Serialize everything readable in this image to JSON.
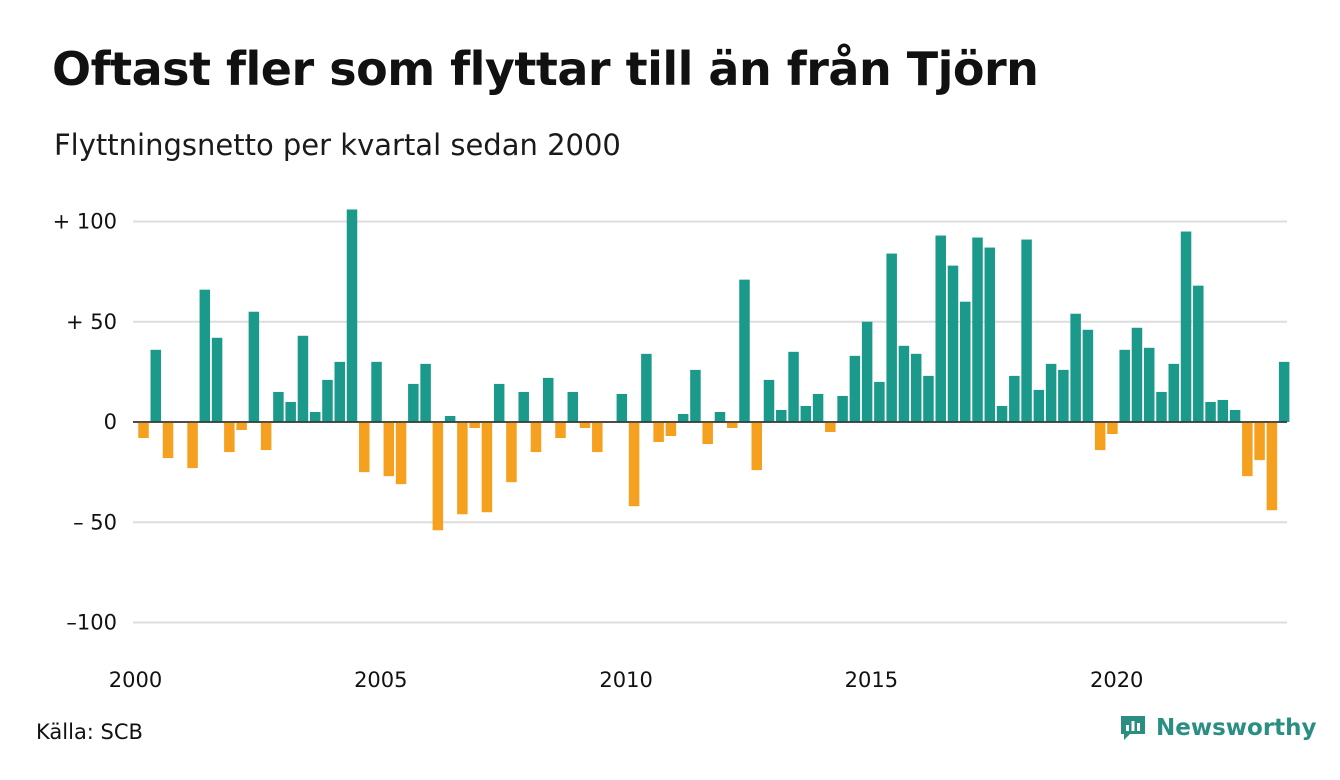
{
  "header": {
    "title": "Oftast fler som flyttar till än från Tjörn",
    "subtitle": "Flyttningsnetto per kvartal sedan 2000"
  },
  "footer": {
    "source": "Källa: SCB",
    "brand": "Newsworthy",
    "brand_icon": "newsworthy-logo-icon"
  },
  "colors": {
    "positive": "#1b9a8c",
    "negative": "#f6a01f",
    "grid": "#dddddd",
    "baseline": "#333333",
    "brand": "#2a8f82"
  },
  "chart_data": {
    "type": "bar",
    "x_start": "2000-Q1",
    "x_tick_labels": [
      "2000",
      "2005",
      "2010",
      "2015",
      "2020"
    ],
    "y_tick_labels": [
      "+ 100",
      "+  50",
      "0",
      "– 50",
      "–100"
    ],
    "y_ticks": [
      100,
      50,
      0,
      -50,
      -100
    ],
    "ylim": [
      -100,
      100
    ],
    "grid": true,
    "legend": "none",
    "values": [
      -8,
      36,
      -18,
      0,
      -23,
      66,
      42,
      -15,
      -4,
      55,
      -14,
      15,
      10,
      43,
      5,
      21,
      30,
      106,
      -25,
      30,
      -27,
      -31,
      19,
      29,
      -54,
      3,
      -46,
      -3,
      -45,
      19,
      -30,
      15,
      -15,
      22,
      -8,
      15,
      -3,
      -15,
      0,
      14,
      -42,
      34,
      -10,
      -7,
      4,
      26,
      -11,
      5,
      -3,
      71,
      -24,
      21,
      6,
      35,
      8,
      14,
      -5,
      13,
      33,
      50,
      20,
      84,
      38,
      34,
      23,
      93,
      78,
      60,
      92,
      87,
      8,
      23,
      91,
      16,
      29,
      26,
      54,
      46,
      -14,
      -6,
      36,
      47,
      37,
      15,
      29,
      95,
      68,
      10,
      11,
      6,
      -27,
      -19,
      -44,
      30
    ]
  }
}
